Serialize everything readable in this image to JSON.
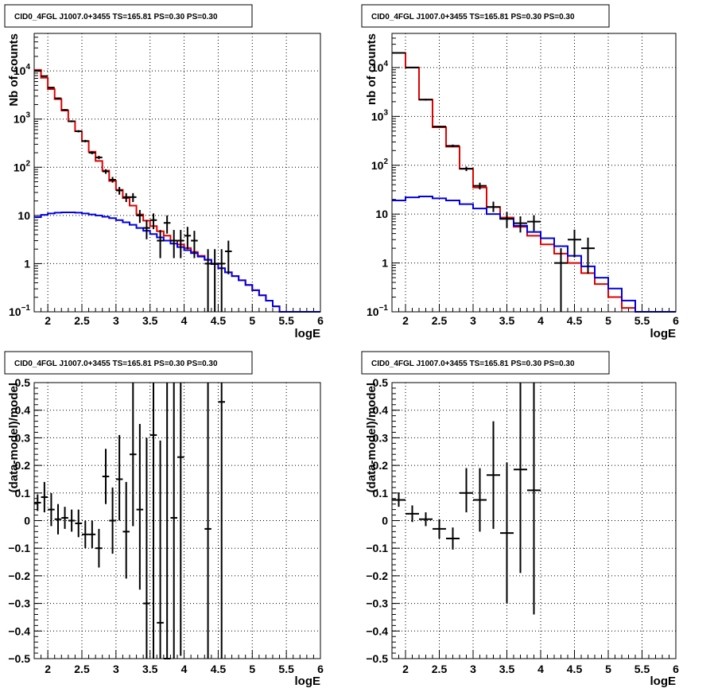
{
  "chart_data": [
    {
      "type": "histogram",
      "title": "CID0_4FGL J1007.0+3455 TS=165.81 PS=0.30 PS=0.30",
      "xlabel": "logE",
      "ylabel": "Nb of counts",
      "log_y": true,
      "xlim": [
        1.8,
        6.0
      ],
      "ylim": [
        0.1,
        60000
      ],
      "grid": true,
      "x_ticks": [
        {
          "v": 2,
          "label": "2"
        },
        {
          "v": 2.5,
          "label": "2.5"
        },
        {
          "v": 3,
          "label": "3"
        },
        {
          "v": 3.5,
          "label": "3.5"
        },
        {
          "v": 4,
          "label": "4"
        },
        {
          "v": 4.5,
          "label": "4.5"
        },
        {
          "v": 5,
          "label": "5"
        },
        {
          "v": 5.5,
          "label": "5.5"
        },
        {
          "v": 6,
          "label": "6"
        }
      ],
      "y_ticks": [
        {
          "v": 0.1,
          "base": "10",
          "exp": "−1"
        },
        {
          "v": 1,
          "label": "1"
        },
        {
          "v": 10,
          "label": "10"
        },
        {
          "v": 100,
          "base": "10",
          "exp": "2"
        },
        {
          "v": 1000,
          "base": "10",
          "exp": "3"
        },
        {
          "v": 10000,
          "base": "10",
          "exp": "4"
        }
      ],
      "bin_edges": [
        1.8,
        1.9,
        2.0,
        2.1,
        2.2,
        2.3,
        2.4,
        2.5,
        2.6,
        2.7,
        2.8,
        2.9,
        3.0,
        3.1,
        3.2,
        3.3,
        3.4,
        3.5,
        3.6,
        3.7,
        3.8,
        3.9,
        4.0,
        4.1,
        4.2,
        4.3,
        4.4,
        4.5,
        4.6,
        4.7,
        4.8,
        4.9,
        5.0,
        5.1,
        5.2,
        5.3,
        5.4,
        5.5,
        5.6,
        5.7,
        5.8,
        5.9,
        6.0
      ],
      "series": [
        {
          "color": "#e00000",
          "values": [
            10500,
            7200,
            4200,
            2600,
            1500,
            900,
            560,
            350,
            210,
            135,
            85,
            52,
            34,
            23,
            16,
            10.5,
            7.8,
            6.0,
            4.7,
            3.8,
            3.0,
            2.5,
            2.1,
            1.75,
            1.45,
            1.2,
            0.98,
            0.8,
            0.66,
            0.55,
            0.45,
            0.36,
            0.28,
            0.22,
            0.17,
            0.13,
            0.1,
            0.1,
            0.1,
            0.1,
            0.1,
            0.1
          ]
        },
        {
          "color": "#0000e0",
          "values": [
            9.2,
            10.3,
            11.0,
            11.4,
            11.6,
            11.6,
            11.4,
            11.0,
            10.5,
            10.0,
            9.4,
            8.8,
            8.0,
            7.2,
            6.4,
            5.5,
            4.8,
            4.1,
            3.5,
            3.0,
            2.6,
            2.2,
            1.9,
            1.65,
            1.4,
            1.2,
            0.98,
            0.8,
            0.66,
            0.55,
            0.45,
            0.36,
            0.28,
            0.22,
            0.17,
            0.13,
            0.1,
            0.1,
            0.1,
            0.1,
            0.1,
            0.1
          ]
        }
      ],
      "points": [
        {
          "x": 1.85,
          "y": 10000,
          "lo": 9800,
          "hi": 10200
        },
        {
          "x": 1.95,
          "y": 7800,
          "lo": 7600,
          "hi": 8000
        },
        {
          "x": 2.05,
          "y": 4500,
          "lo": 4350,
          "hi": 4650
        },
        {
          "x": 2.15,
          "y": 2700,
          "lo": 2600,
          "hi": 2800
        },
        {
          "x": 2.25,
          "y": 1550,
          "lo": 1490,
          "hi": 1610
        },
        {
          "x": 2.35,
          "y": 900,
          "lo": 860,
          "hi": 940
        },
        {
          "x": 2.45,
          "y": 560,
          "lo": 530,
          "hi": 590
        },
        {
          "x": 2.55,
          "y": 350,
          "lo": 330,
          "hi": 370
        },
        {
          "x": 2.65,
          "y": 200,
          "lo": 186,
          "hi": 214
        },
        {
          "x": 2.75,
          "y": 160,
          "lo": 147,
          "hi": 173
        },
        {
          "x": 2.85,
          "y": 82,
          "lo": 73,
          "hi": 91
        },
        {
          "x": 2.95,
          "y": 55,
          "lo": 48,
          "hi": 63
        },
        {
          "x": 3.05,
          "y": 33,
          "lo": 27,
          "hi": 39
        },
        {
          "x": 3.15,
          "y": 24,
          "lo": 19,
          "hi": 29
        },
        {
          "x": 3.25,
          "y": 24,
          "lo": 19,
          "hi": 29
        },
        {
          "x": 3.35,
          "y": 10,
          "lo": 7,
          "hi": 13
        },
        {
          "x": 3.45,
          "y": 5.5,
          "lo": 3.2,
          "hi": 8
        },
        {
          "x": 3.55,
          "y": 8,
          "lo": 5.2,
          "hi": 11
        },
        {
          "x": 3.65,
          "y": 3,
          "lo": 1.3,
          "hi": 5
        },
        {
          "x": 3.75,
          "y": 7,
          "lo": 4.2,
          "hi": 10
        },
        {
          "x": 3.85,
          "y": 3,
          "lo": 1.3,
          "hi": 5
        },
        {
          "x": 3.95,
          "y": 3,
          "lo": 1.3,
          "hi": 5
        },
        {
          "x": 4.05,
          "y": 3.8,
          "lo": 2,
          "hi": 5.8
        },
        {
          "x": 4.15,
          "y": 3,
          "lo": 1.3,
          "hi": 4.8
        },
        {
          "x": 4.35,
          "y": 1,
          "lo": 0.1,
          "hi": 2
        },
        {
          "x": 4.45,
          "y": 1,
          "lo": 0.1,
          "hi": 2
        },
        {
          "x": 4.55,
          "y": 1,
          "lo": 0.1,
          "hi": 2
        },
        {
          "x": 4.65,
          "y": 1.8,
          "lo": 0.6,
          "hi": 3
        }
      ]
    },
    {
      "type": "histogram",
      "title": "CID0_4FGL J1007.0+3455 TS=165.81 PS=0.30 PS=0.30",
      "xlabel": "logE",
      "ylabel": "nb of counts",
      "log_y": true,
      "xlim": [
        1.8,
        6.0
      ],
      "ylim": [
        0.1,
        50000
      ],
      "grid": true,
      "x_ticks": [
        {
          "v": 2,
          "label": "2"
        },
        {
          "v": 2.5,
          "label": "2.5"
        },
        {
          "v": 3,
          "label": "3"
        },
        {
          "v": 3.5,
          "label": "3.5"
        },
        {
          "v": 4,
          "label": "4"
        },
        {
          "v": 4.5,
          "label": "4.5"
        },
        {
          "v": 5,
          "label": "5"
        },
        {
          "v": 5.5,
          "label": "5.5"
        },
        {
          "v": 6,
          "label": "6"
        }
      ],
      "y_ticks": [
        {
          "v": 0.1,
          "base": "10",
          "exp": "−1"
        },
        {
          "v": 1,
          "label": "1"
        },
        {
          "v": 10,
          "label": "10"
        },
        {
          "v": 100,
          "base": "10",
          "exp": "2"
        },
        {
          "v": 1000,
          "base": "10",
          "exp": "3"
        },
        {
          "v": 10000,
          "base": "10",
          "exp": "4"
        }
      ],
      "bin_edges": [
        1.8,
        2.0,
        2.2,
        2.4,
        2.6,
        2.8,
        3.0,
        3.2,
        3.4,
        3.6,
        3.8,
        4.0,
        4.2,
        4.4,
        4.6,
        4.8,
        5.0,
        5.2,
        5.4,
        5.6,
        5.8,
        6.0
      ],
      "series": [
        {
          "color": "#e00000",
          "values": [
            20000,
            10000,
            2200,
            600,
            240,
            85,
            35,
            14,
            8.5,
            5.5,
            3.6,
            2.4,
            1.55,
            1.0,
            0.62,
            0.37,
            0.2,
            0.12,
            0.1,
            0.1,
            0.1
          ]
        },
        {
          "color": "#0000e0",
          "values": [
            19,
            22,
            23,
            21,
            19,
            16,
            13,
            10,
            8,
            5.8,
            4.3,
            3.2,
            2.2,
            1.4,
            0.85,
            0.5,
            0.3,
            0.17,
            0.1,
            0.1,
            0.1
          ]
        }
      ],
      "points": [
        {
          "x": 1.9,
          "y": 20000,
          "lo": 19700,
          "hi": 20300
        },
        {
          "x": 2.1,
          "y": 10000,
          "lo": 9800,
          "hi": 10200
        },
        {
          "x": 2.3,
          "y": 2200,
          "lo": 2110,
          "hi": 2290
        },
        {
          "x": 2.5,
          "y": 620,
          "lo": 595,
          "hi": 645
        },
        {
          "x": 2.7,
          "y": 250,
          "lo": 235,
          "hi": 265
        },
        {
          "x": 2.9,
          "y": 85,
          "lo": 76,
          "hi": 94
        },
        {
          "x": 3.1,
          "y": 38,
          "lo": 32,
          "hi": 44
        },
        {
          "x": 3.3,
          "y": 14,
          "lo": 11,
          "hi": 18
        },
        {
          "x": 3.5,
          "y": 8,
          "lo": 5.2,
          "hi": 11
        },
        {
          "x": 3.7,
          "y": 6.5,
          "lo": 4.2,
          "hi": 9
        },
        {
          "x": 3.9,
          "y": 7,
          "lo": 4.5,
          "hi": 9.5
        },
        {
          "x": 4.3,
          "y": 1,
          "lo": 0.1,
          "hi": 2
        },
        {
          "x": 4.5,
          "y": 3,
          "lo": 1.3,
          "hi": 4.8
        },
        {
          "x": 4.7,
          "y": 2,
          "lo": 0.6,
          "hi": 3.3
        }
      ]
    },
    {
      "type": "scatter",
      "title": "CID0_4FGL J1007.0+3455 TS=165.81 PS=0.30 PS=0.30",
      "xlabel": "logE",
      "ylabel": "(data-model)/model",
      "log_y": false,
      "xlim": [
        1.8,
        6.0
      ],
      "ylim": [
        -0.5,
        0.5
      ],
      "grid": true,
      "x_ticks": [
        {
          "v": 2,
          "label": "2"
        },
        {
          "v": 2.5,
          "label": "2.5"
        },
        {
          "v": 3,
          "label": "3"
        },
        {
          "v": 3.5,
          "label": "3.5"
        },
        {
          "v": 4,
          "label": "4"
        },
        {
          "v": 4.5,
          "label": "4.5"
        },
        {
          "v": 5,
          "label": "5"
        },
        {
          "v": 5.5,
          "label": "5.5"
        },
        {
          "v": 6,
          "label": "6"
        }
      ],
      "y_ticks": [
        {
          "v": -0.5,
          "label": "−0.5"
        },
        {
          "v": -0.4,
          "label": "−0.4"
        },
        {
          "v": -0.3,
          "label": "−0.3"
        },
        {
          "v": -0.2,
          "label": "−0.2"
        },
        {
          "v": -0.1,
          "label": "−0.1"
        },
        {
          "v": 0,
          "label": "0"
        },
        {
          "v": 0.1,
          "label": "0.1"
        },
        {
          "v": 0.2,
          "label": "0.2"
        },
        {
          "v": 0.3,
          "label": "0.3"
        },
        {
          "v": 0.4,
          "label": "0.4"
        },
        {
          "v": 0.5,
          "label": "0.5"
        }
      ],
      "half_width": 0.05,
      "points": [
        {
          "x": 1.85,
          "y": 0.065,
          "lo": 0.035,
          "hi": 0.095
        },
        {
          "x": 1.95,
          "y": 0.085,
          "lo": 0.03,
          "hi": 0.14
        },
        {
          "x": 2.05,
          "y": 0.04,
          "lo": -0.02,
          "hi": 0.1
        },
        {
          "x": 2.15,
          "y": 0.005,
          "lo": -0.05,
          "hi": 0.06
        },
        {
          "x": 2.25,
          "y": 0.01,
          "lo": -0.03,
          "hi": 0.05
        },
        {
          "x": 2.35,
          "y": 0.0,
          "lo": -0.04,
          "hi": 0.04
        },
        {
          "x": 2.45,
          "y": -0.01,
          "lo": -0.06,
          "hi": 0.04
        },
        {
          "x": 2.55,
          "y": -0.05,
          "lo": -0.1,
          "hi": 0.0
        },
        {
          "x": 2.65,
          "y": -0.05,
          "lo": -0.1,
          "hi": 0.0
        },
        {
          "x": 2.75,
          "y": -0.1,
          "lo": -0.17,
          "hi": -0.03
        },
        {
          "x": 2.85,
          "y": 0.16,
          "lo": 0.06,
          "hi": 0.26
        },
        {
          "x": 2.95,
          "y": 0.0,
          "lo": -0.12,
          "hi": 0.12
        },
        {
          "x": 3.05,
          "y": 0.15,
          "lo": 0.0,
          "hi": 0.31
        },
        {
          "x": 3.15,
          "y": -0.04,
          "lo": -0.21,
          "hi": 0.14
        },
        {
          "x": 3.25,
          "y": 0.24,
          "lo": -0.02,
          "hi": 0.5
        },
        {
          "x": 3.35,
          "y": 0.04,
          "lo": -0.25,
          "hi": 0.35
        },
        {
          "x": 3.45,
          "y": -0.3,
          "lo": -0.5,
          "hi": 0.3
        },
        {
          "x": 3.55,
          "y": 0.31,
          "lo": -0.5,
          "hi": 0.5
        },
        {
          "x": 3.65,
          "y": -0.37,
          "lo": -0.5,
          "hi": 0.29
        },
        {
          "x": 3.75,
          "y": -0.5,
          "lo": -0.5,
          "hi": 0.5
        },
        {
          "x": 3.85,
          "y": 0.01,
          "lo": -0.5,
          "hi": 0.5
        },
        {
          "x": 3.95,
          "y": 0.23,
          "lo": -0.49,
          "hi": 0.5
        },
        {
          "x": 4.35,
          "y": -0.03,
          "lo": -0.5,
          "hi": 0.5
        },
        {
          "x": 4.55,
          "y": 0.43,
          "lo": -0.5,
          "hi": 0.5
        }
      ]
    },
    {
      "type": "scatter",
      "title": "CID0_4FGL J1007.0+3455 TS=165.81 PS=0.30 PS=0.30",
      "xlabel": "logE",
      "ylabel": "(data-model)/model",
      "log_y": false,
      "xlim": [
        1.8,
        6.0
      ],
      "ylim": [
        -0.5,
        0.5
      ],
      "grid": true,
      "x_ticks": [
        {
          "v": 2,
          "label": "2"
        },
        {
          "v": 2.5,
          "label": "2.5"
        },
        {
          "v": 3,
          "label": "3"
        },
        {
          "v": 3.5,
          "label": "3.5"
        },
        {
          "v": 4,
          "label": "4"
        },
        {
          "v": 4.5,
          "label": "4.5"
        },
        {
          "v": 5,
          "label": "5"
        },
        {
          "v": 5.5,
          "label": "5.5"
        },
        {
          "v": 6,
          "label": "6"
        }
      ],
      "y_ticks": [
        {
          "v": -0.5,
          "label": "−0.5"
        },
        {
          "v": -0.4,
          "label": "−0.4"
        },
        {
          "v": -0.3,
          "label": "−0.3"
        },
        {
          "v": -0.2,
          "label": "−0.2"
        },
        {
          "v": -0.1,
          "label": "−0.1"
        },
        {
          "v": 0,
          "label": "0"
        },
        {
          "v": 0.1,
          "label": "0.1"
        },
        {
          "v": 0.2,
          "label": "0.2"
        },
        {
          "v": 0.3,
          "label": "0.3"
        },
        {
          "v": 0.4,
          "label": "0.4"
        },
        {
          "v": 0.5,
          "label": "0.5"
        }
      ],
      "half_width": 0.1,
      "points": [
        {
          "x": 1.9,
          "y": 0.075,
          "lo": 0.05,
          "hi": 0.1
        },
        {
          "x": 2.1,
          "y": 0.025,
          "lo": -0.005,
          "hi": 0.055
        },
        {
          "x": 2.3,
          "y": 0.005,
          "lo": -0.02,
          "hi": 0.03
        },
        {
          "x": 2.5,
          "y": -0.03,
          "lo": -0.065,
          "hi": 0.005
        },
        {
          "x": 2.7,
          "y": -0.065,
          "lo": -0.105,
          "hi": -0.025
        },
        {
          "x": 2.9,
          "y": 0.1,
          "lo": 0.03,
          "hi": 0.19
        },
        {
          "x": 3.1,
          "y": 0.075,
          "lo": -0.04,
          "hi": 0.19
        },
        {
          "x": 3.3,
          "y": 0.165,
          "lo": -0.03,
          "hi": 0.36
        },
        {
          "x": 3.5,
          "y": -0.045,
          "lo": -0.3,
          "hi": 0.21
        },
        {
          "x": 3.7,
          "y": 0.185,
          "lo": -0.19,
          "hi": 0.5
        },
        {
          "x": 3.9,
          "y": 0.11,
          "lo": -0.34,
          "hi": 0.5
        }
      ]
    }
  ]
}
